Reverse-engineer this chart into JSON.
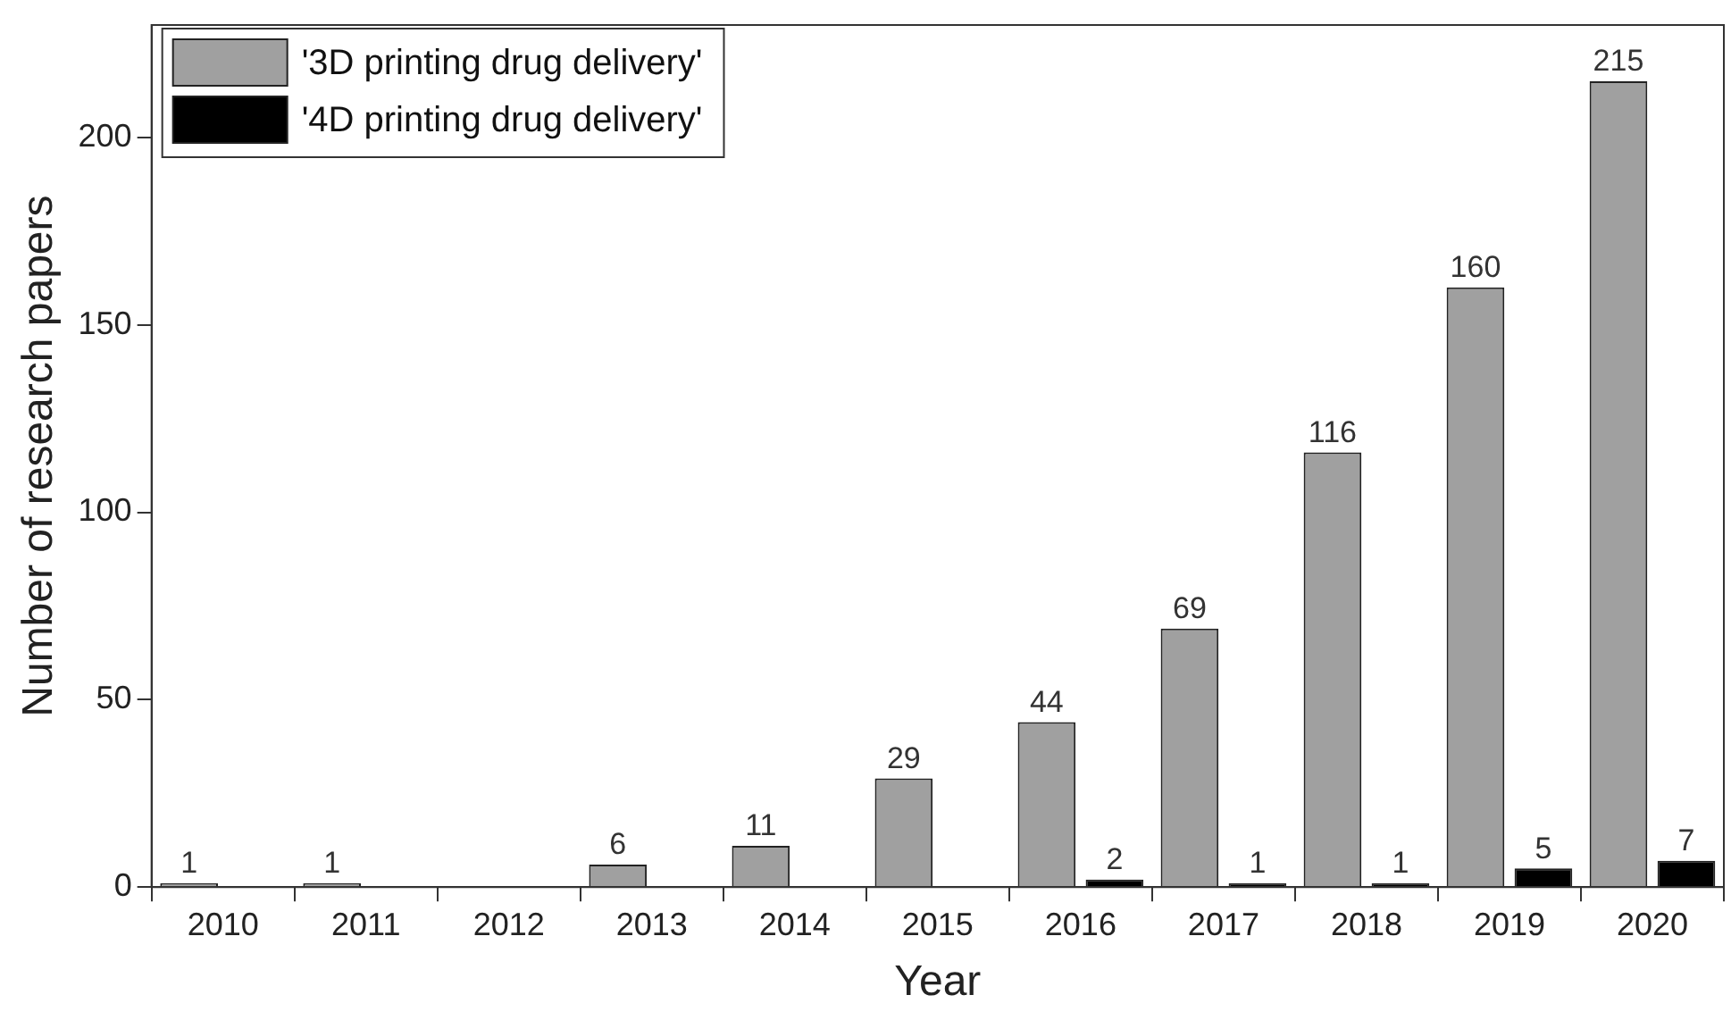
{
  "chart_data": {
    "type": "bar",
    "xlabel": "Year",
    "ylabel": "Number of research papers",
    "categories": [
      "2010",
      "2011",
      "2012",
      "2013",
      "2014",
      "2015",
      "2016",
      "2017",
      "2018",
      "2019",
      "2020"
    ],
    "series": [
      {
        "name": "'3D printing drug delivery'",
        "color": "#a0a0a0",
        "values": [
          1,
          1,
          null,
          6,
          11,
          29,
          44,
          69,
          116,
          160,
          215
        ]
      },
      {
        "name": "'4D printing drug delivery'",
        "color": "#000000",
        "values": [
          null,
          null,
          null,
          null,
          null,
          null,
          2,
          1,
          1,
          5,
          7
        ]
      }
    ],
    "ylim": [
      0,
      230
    ],
    "yticks": [
      0,
      50,
      100,
      150,
      200
    ],
    "grid": false,
    "legend": "top left",
    "data_labels": true
  }
}
